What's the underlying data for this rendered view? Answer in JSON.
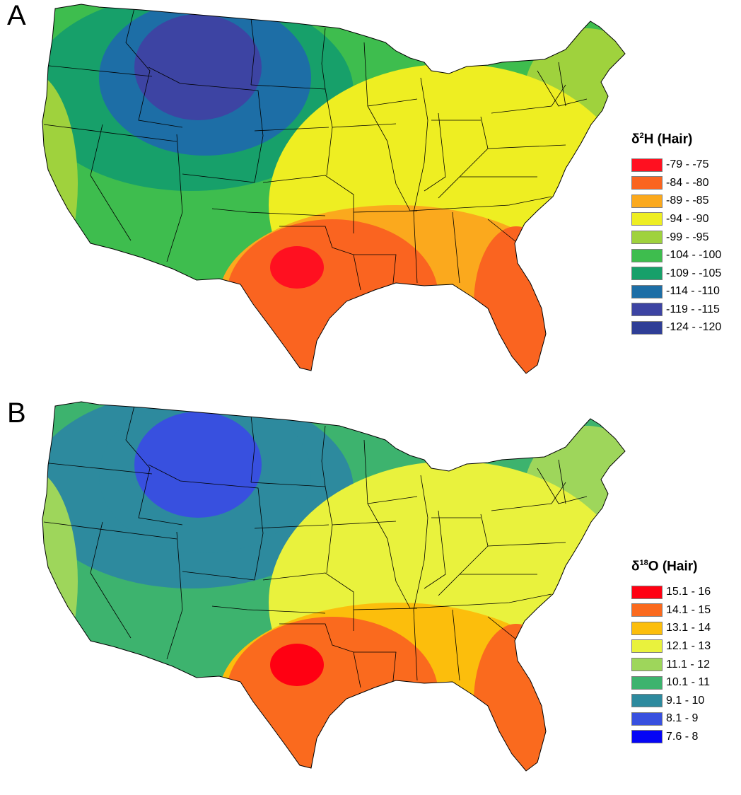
{
  "panels": [
    {
      "letter": "A",
      "legend": {
        "symbol": "δ",
        "sup": "2",
        "element": "H",
        "suffix": " (Hair)",
        "items": [
          {
            "label": "-79 - -75",
            "color": "#ff1020"
          },
          {
            "label": "-84 - -80",
            "color": "#fa6420"
          },
          {
            "label": "-89 - -85",
            "color": "#fba91d"
          },
          {
            "label": "-94 - -90",
            "color": "#eeee22"
          },
          {
            "label": "-99 - -95",
            "color": "#9fd23d"
          },
          {
            "label": "-104 - -100",
            "color": "#3ebd4e"
          },
          {
            "label": "-109 - -105",
            "color": "#17a06a"
          },
          {
            "label": "-114 - -110",
            "color": "#1d6ea6"
          },
          {
            "label": "-119 - -115",
            "color": "#3d44a3"
          },
          {
            "label": "-124 - -120",
            "color": "#2f3e96"
          }
        ]
      }
    },
    {
      "letter": "B",
      "legend": {
        "symbol": "δ",
        "sup": "18",
        "element": "O",
        "suffix": " (Hair)",
        "items": [
          {
            "label": "15.1 - 16",
            "color": "#ff0012"
          },
          {
            "label": "14.1 - 15",
            "color": "#fa6a1e"
          },
          {
            "label": "13.1 - 14",
            "color": "#fcbe0c"
          },
          {
            "label": "12.1 - 13",
            "color": "#e9f23d"
          },
          {
            "label": "11.1 - 12",
            "color": "#9ed65b"
          },
          {
            "label": "10.1 - 11",
            "color": "#3db36e"
          },
          {
            "label": "9.1 - 10",
            "color": "#2d8a9e"
          },
          {
            "label": "8.1 - 9",
            "color": "#3850df"
          },
          {
            "label": "7.6 - 8",
            "color": "#0505f5"
          }
        ]
      }
    }
  ]
}
